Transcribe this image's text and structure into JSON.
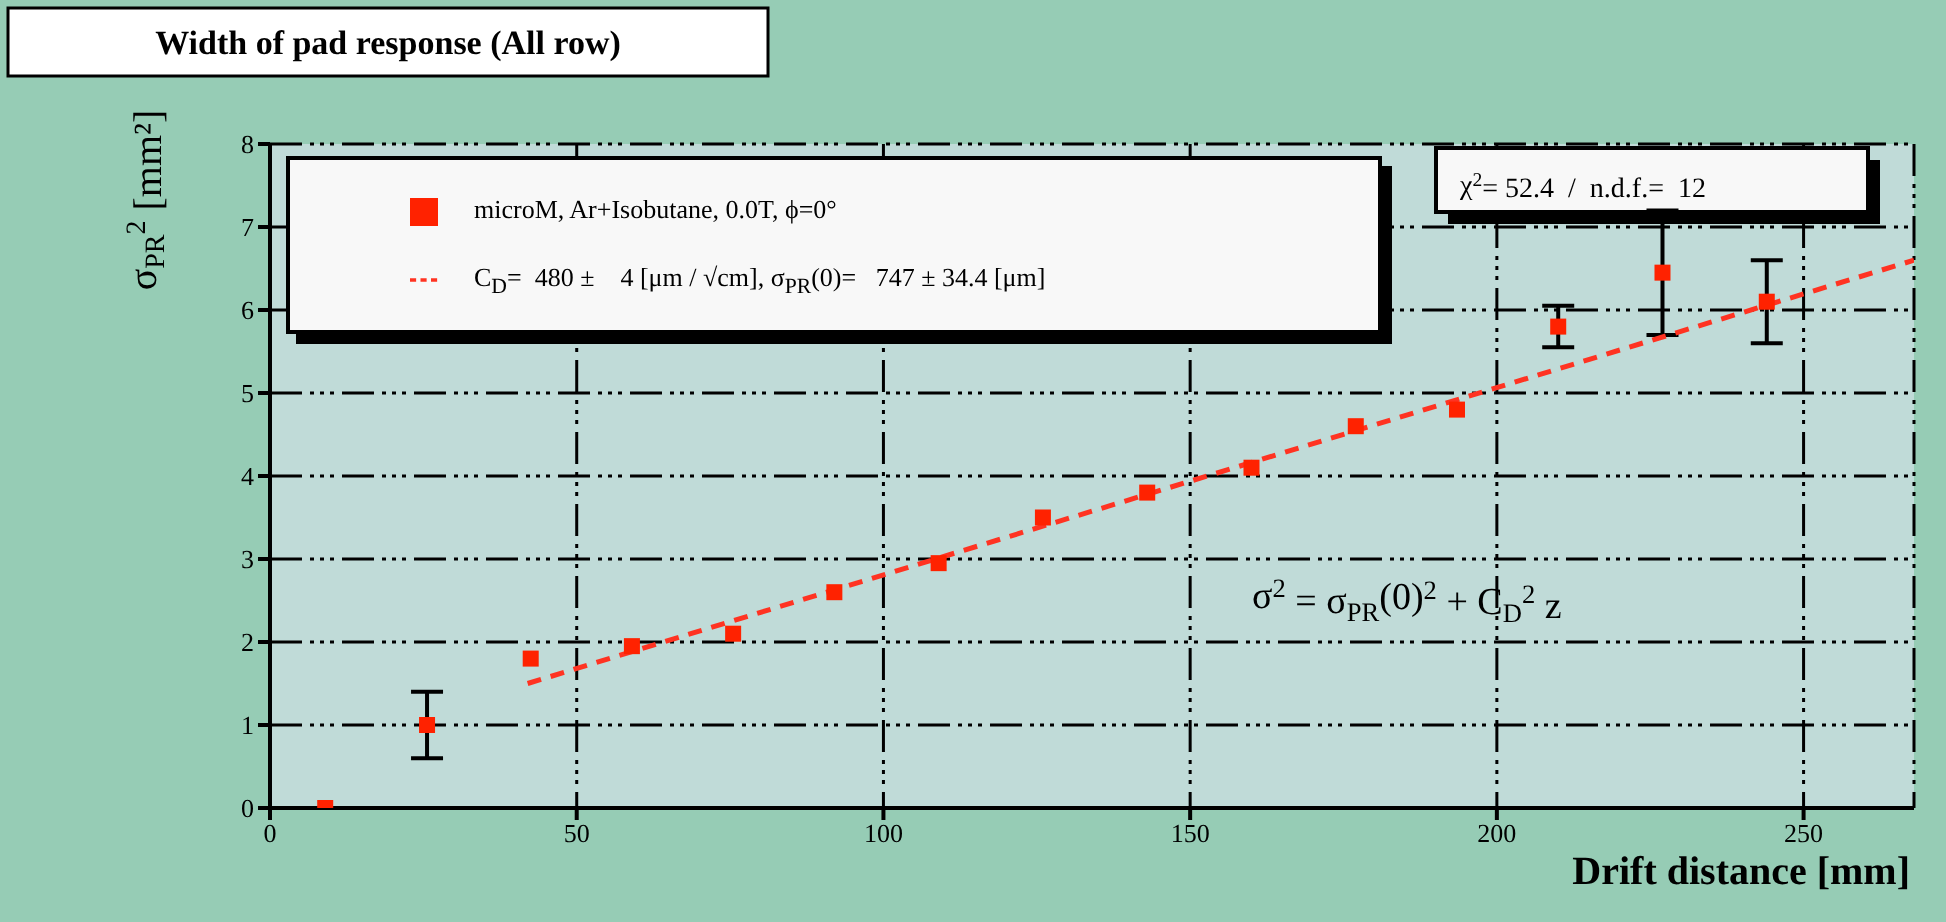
{
  "chart_data": {
    "type": "scatter",
    "title": "Width of pad response (All row)",
    "xlabel": "Drift distance [mm]",
    "ylabel": "σ$_{PR}$$^{2}$ [mm²]",
    "annotations": [
      "χ$^{2}$= 52.4  /  n.d.f.=  12",
      "σ$^{2}$ = σ$_{PR}$(0)$^{2}$ + C$_{D}$$^{2}$ z"
    ],
    "series": [
      {
        "name": "microM, Ar+Isobutane, 0.0T, ϕ=0°",
        "color": "#ff2200",
        "marker": "square",
        "x": [
          9,
          25.6,
          42.5,
          59,
          75.5,
          92,
          109,
          126,
          143,
          160,
          177,
          193.5,
          210,
          227,
          244
        ],
        "values": [
          0,
          1.0,
          1.8,
          1.95,
          2.1,
          2.6,
          2.95,
          3.5,
          3.8,
          4.1,
          4.6,
          4.8,
          5.8,
          6.45,
          6.1
        ],
        "errors": [
          null,
          0.4,
          null,
          null,
          null,
          null,
          null,
          null,
          null,
          null,
          null,
          null,
          0.25,
          0.75,
          0.5
        ]
      },
      {
        "type": "line",
        "name": "C$_{D}$=  480 ±    4 [μm / √cm], σ$_{PR}$(0)=   747 ± 34.4 [μm]",
        "color": "#ff3322",
        "line_style": "dashed",
        "x": [
          42,
          268
        ],
        "values": [
          1.5,
          6.6
        ]
      }
    ],
    "xlim": [
      0,
      268
    ],
    "xticks": [
      0,
      50,
      100,
      150,
      200,
      250
    ],
    "ylim": [
      0,
      8
    ],
    "yticks": [
      0,
      1,
      2,
      3,
      4,
      5,
      6,
      7,
      8
    ],
    "grid": true,
    "legend": "top left"
  }
}
